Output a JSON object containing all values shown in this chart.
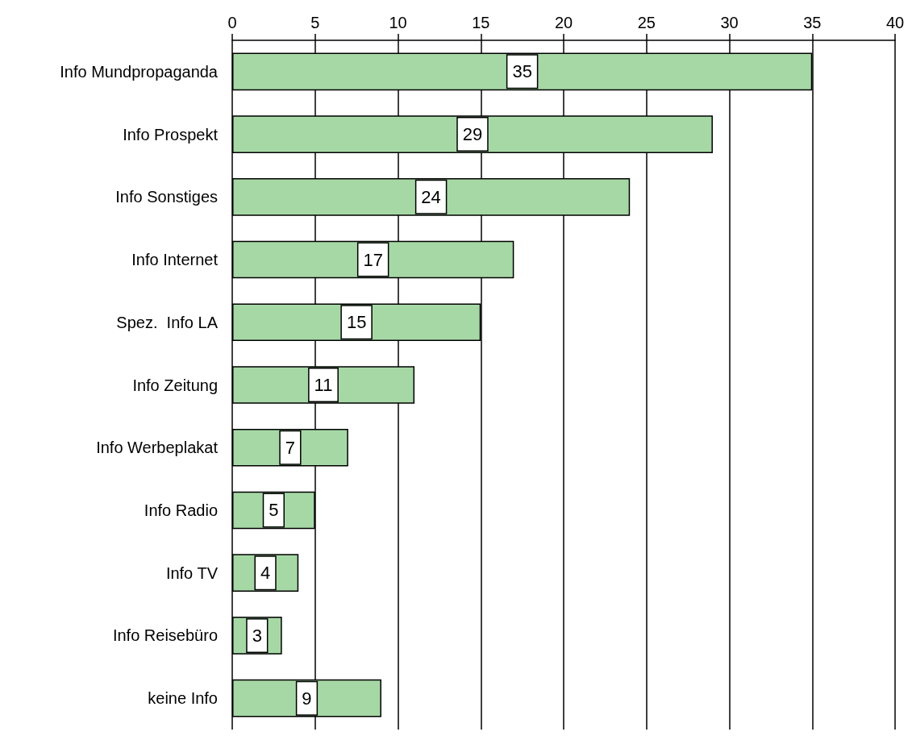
{
  "chart_data": {
    "type": "bar",
    "orientation": "horizontal",
    "categories": [
      "Info Mundpropaganda",
      "Info Prospekt",
      "Info Sonstiges",
      "Info Internet",
      "Spez.  Info LA",
      "Info Zeitung",
      "Info Werbeplakat",
      "Info Radio",
      "Info TV",
      "Info Reisebüro",
      "keine Info"
    ],
    "values": [
      35,
      29,
      24,
      17,
      15,
      11,
      7,
      5,
      4,
      3,
      9
    ],
    "color": "#a6d8a6",
    "xlim": [
      0,
      40
    ],
    "xticks": [
      0,
      5,
      10,
      15,
      20,
      25,
      30,
      35,
      40
    ],
    "grid": "x",
    "data_labels": true
  }
}
